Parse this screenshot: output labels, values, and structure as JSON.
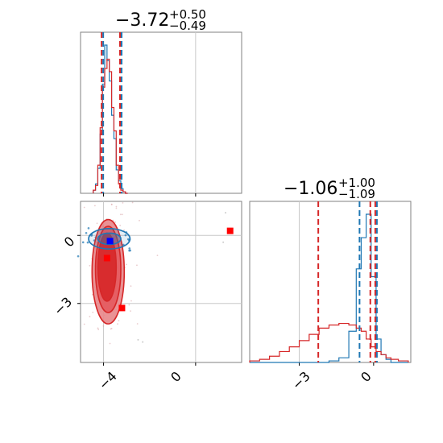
{
  "chart_data": {
    "type": "corner",
    "panel_titles": [
      {
        "value": "−3.72",
        "plus": "+0.50",
        "minus": "−0.49"
      },
      {
        "value": "−1.06",
        "plus": "+1.00",
        "minus": "−1.09"
      }
    ],
    "colors": {
      "red": "#d62728",
      "blue": "#1f77b4",
      "red_fill": "#e8868a",
      "marker_red": "#ff0000",
      "marker_blue": "#0000ff",
      "frame": "#808080"
    },
    "x1": {
      "range": [
        -5.0,
        2.0
      ],
      "ticks": [
        -4,
        0
      ],
      "tick_labels": [
        "−4",
        "0"
      ],
      "truth": -4.0
    },
    "x2": {
      "range": [
        -5.0,
        1.5
      ],
      "ticks": [
        -3,
        0
      ],
      "tick_labels": [
        "−3",
        "0"
      ],
      "truth": -3.0,
      "y_range": [
        -5.6,
        1.5
      ],
      "y_ticks": [
        0,
        -3
      ],
      "y_tick_labels": [
        "0",
        "−3"
      ]
    },
    "marginal_x1": {
      "x": [
        -4.4,
        -4.3,
        -4.2,
        -4.1,
        -4.0,
        -3.9,
        -3.8,
        -3.7,
        -3.6,
        -3.5,
        -3.4,
        -3.3,
        -3.2,
        -3.1,
        -3.0
      ],
      "series": [
        {
          "name": "",
          "color": "blue",
          "values": [
            0.02,
            0.06,
            0.16,
            0.38,
            0.7,
            0.95,
            0.85,
            0.72,
            0.5,
            0.35,
            0.15,
            0.08,
            0.03,
            0.01,
            0.0
          ]
        },
        {
          "name": "",
          "color": "red",
          "values": [
            0.02,
            0.05,
            0.18,
            0.42,
            0.68,
            0.8,
            0.86,
            0.78,
            0.55,
            0.4,
            0.18,
            0.06,
            0.02,
            0.01,
            0.0
          ]
        }
      ],
      "quantiles": {
        "red": [
          -4.05,
          -3.25
        ],
        "blue": [
          -4.05,
          -3.25
        ]
      }
    },
    "marginal_x2": {
      "x": [
        -4.8,
        -4.4,
        -4.0,
        -3.6,
        -3.2,
        -2.8,
        -2.4,
        -2.0,
        -1.6,
        -1.2,
        -0.8,
        -0.6,
        -0.4,
        -0.2,
        0.0,
        0.2,
        0.4,
        0.6,
        0.8,
        1.2
      ],
      "series": [
        {
          "name": "",
          "color": "blue",
          "values": [
            0.0,
            0.0,
            0.0,
            0.0,
            0.0,
            0.0,
            0.0,
            0.0,
            0.01,
            0.03,
            0.2,
            0.6,
            0.8,
            0.95,
            0.55,
            0.15,
            0.05,
            0.02,
            0.0,
            0.0
          ]
        },
        {
          "name": "",
          "color": "red",
          "values": [
            0.01,
            0.02,
            0.04,
            0.07,
            0.1,
            0.14,
            0.18,
            0.22,
            0.24,
            0.25,
            0.24,
            0.22,
            0.2,
            0.15,
            0.1,
            0.07,
            0.05,
            0.03,
            0.02,
            0.01
          ]
        }
      ],
      "quantiles": {
        "red": [
          -2.2,
          -0.1,
          0.1
        ],
        "blue": [
          -0.6,
          0.1
        ]
      }
    },
    "joint": {
      "red_contours": [
        {
          "level": "outer",
          "cx": -3.8,
          "cy": -1.6,
          "rx": 0.7,
          "ry": 2.3
        },
        {
          "level": "mid",
          "cx": -3.8,
          "cy": -1.5,
          "rx": 0.55,
          "ry": 1.9
        },
        {
          "level": "inner",
          "cx": -3.85,
          "cy": -1.4,
          "rx": 0.4,
          "ry": 1.5
        }
      ],
      "blue_contours": [
        {
          "level": "outer",
          "cx": -3.75,
          "cy": -0.15,
          "rx": 0.9,
          "ry": 0.45
        },
        {
          "level": "inner",
          "cx": -3.75,
          "cy": -0.15,
          "rx": 0.5,
          "ry": 0.25
        }
      ],
      "markers": [
        {
          "x": -3.72,
          "y": -0.25,
          "color": "marker_blue"
        },
        {
          "x": -3.85,
          "y": -1.0,
          "color": "marker_red"
        },
        {
          "x": -3.2,
          "y": -3.2,
          "color": "marker_red"
        },
        {
          "x": 1.5,
          "y": 0.2,
          "color": "marker_red"
        }
      ],
      "scatter_seed": 7
    }
  }
}
